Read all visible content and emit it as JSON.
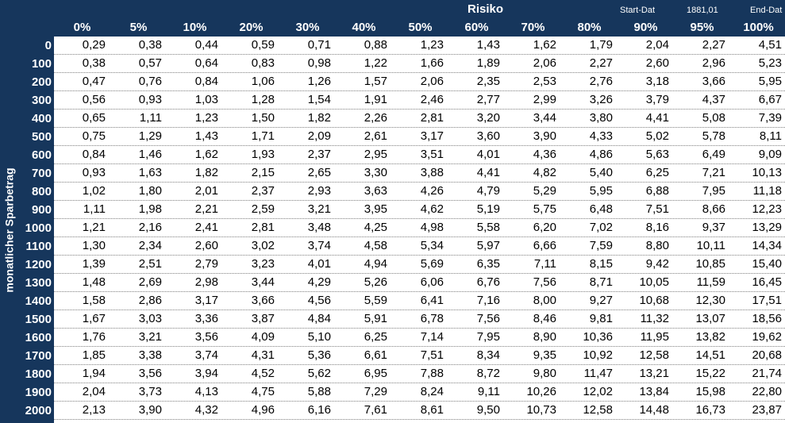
{
  "header": {
    "title": "Risiko",
    "start_label": "Start-Dat",
    "start_value": "1881,01",
    "end_label": "End-Dat"
  },
  "row_axis_label": "monatlicher Sparbetrag",
  "columns": [
    "0%",
    "5%",
    "10%",
    "20%",
    "30%",
    "40%",
    "50%",
    "60%",
    "70%",
    "80%",
    "90%",
    "95%",
    "100%"
  ],
  "row_labels": [
    "0",
    "100",
    "200",
    "300",
    "400",
    "500",
    "600",
    "700",
    "800",
    "900",
    "1000",
    "1100",
    "1200",
    "1300",
    "1400",
    "1500",
    "1600",
    "1700",
    "1800",
    "1900",
    "2000"
  ],
  "rows": [
    [
      "0,29",
      "0,38",
      "0,44",
      "0,59",
      "0,71",
      "0,88",
      "1,23",
      "1,43",
      "1,62",
      "1,79",
      "2,04",
      "2,27",
      "4,51"
    ],
    [
      "0,38",
      "0,57",
      "0,64",
      "0,83",
      "0,98",
      "1,22",
      "1,66",
      "1,89",
      "2,06",
      "2,27",
      "2,60",
      "2,96",
      "5,23"
    ],
    [
      "0,47",
      "0,76",
      "0,84",
      "1,06",
      "1,26",
      "1,57",
      "2,06",
      "2,35",
      "2,53",
      "2,76",
      "3,18",
      "3,66",
      "5,95"
    ],
    [
      "0,56",
      "0,93",
      "1,03",
      "1,28",
      "1,54",
      "1,91",
      "2,46",
      "2,77",
      "2,99",
      "3,26",
      "3,79",
      "4,37",
      "6,67"
    ],
    [
      "0,65",
      "1,11",
      "1,23",
      "1,50",
      "1,82",
      "2,26",
      "2,81",
      "3,20",
      "3,44",
      "3,80",
      "4,41",
      "5,08",
      "7,39"
    ],
    [
      "0,75",
      "1,29",
      "1,43",
      "1,71",
      "2,09",
      "2,61",
      "3,17",
      "3,60",
      "3,90",
      "4,33",
      "5,02",
      "5,78",
      "8,11"
    ],
    [
      "0,84",
      "1,46",
      "1,62",
      "1,93",
      "2,37",
      "2,95",
      "3,51",
      "4,01",
      "4,36",
      "4,86",
      "5,63",
      "6,49",
      "9,09"
    ],
    [
      "0,93",
      "1,63",
      "1,82",
      "2,15",
      "2,65",
      "3,30",
      "3,88",
      "4,41",
      "4,82",
      "5,40",
      "6,25",
      "7,21",
      "10,13"
    ],
    [
      "1,02",
      "1,80",
      "2,01",
      "2,37",
      "2,93",
      "3,63",
      "4,26",
      "4,79",
      "5,29",
      "5,95",
      "6,88",
      "7,95",
      "11,18"
    ],
    [
      "1,11",
      "1,98",
      "2,21",
      "2,59",
      "3,21",
      "3,95",
      "4,62",
      "5,19",
      "5,75",
      "6,48",
      "7,51",
      "8,66",
      "12,23"
    ],
    [
      "1,21",
      "2,16",
      "2,41",
      "2,81",
      "3,48",
      "4,25",
      "4,98",
      "5,58",
      "6,20",
      "7,02",
      "8,16",
      "9,37",
      "13,29"
    ],
    [
      "1,30",
      "2,34",
      "2,60",
      "3,02",
      "3,74",
      "4,58",
      "5,34",
      "5,97",
      "6,66",
      "7,59",
      "8,80",
      "10,11",
      "14,34"
    ],
    [
      "1,39",
      "2,51",
      "2,79",
      "3,23",
      "4,01",
      "4,94",
      "5,69",
      "6,35",
      "7,11",
      "8,15",
      "9,42",
      "10,85",
      "15,40"
    ],
    [
      "1,48",
      "2,69",
      "2,98",
      "3,44",
      "4,29",
      "5,26",
      "6,06",
      "6,76",
      "7,56",
      "8,71",
      "10,05",
      "11,59",
      "16,45"
    ],
    [
      "1,58",
      "2,86",
      "3,17",
      "3,66",
      "4,56",
      "5,59",
      "6,41",
      "7,16",
      "8,00",
      "9,27",
      "10,68",
      "12,30",
      "17,51"
    ],
    [
      "1,67",
      "3,03",
      "3,36",
      "3,87",
      "4,84",
      "5,91",
      "6,78",
      "7,56",
      "8,46",
      "9,81",
      "11,32",
      "13,07",
      "18,56"
    ],
    [
      "1,76",
      "3,21",
      "3,56",
      "4,09",
      "5,10",
      "6,25",
      "7,14",
      "7,95",
      "8,90",
      "10,36",
      "11,95",
      "13,82",
      "19,62"
    ],
    [
      "1,85",
      "3,38",
      "3,74",
      "4,31",
      "5,36",
      "6,61",
      "7,51",
      "8,34",
      "9,35",
      "10,92",
      "12,58",
      "14,51",
      "20,68"
    ],
    [
      "1,94",
      "3,56",
      "3,94",
      "4,52",
      "5,62",
      "6,95",
      "7,88",
      "8,72",
      "9,80",
      "11,47",
      "13,21",
      "15,22",
      "21,74"
    ],
    [
      "2,04",
      "3,73",
      "4,13",
      "4,75",
      "5,88",
      "7,29",
      "8,24",
      "9,11",
      "10,26",
      "12,02",
      "13,84",
      "15,98",
      "22,80"
    ],
    [
      "2,13",
      "3,90",
      "4,32",
      "4,96",
      "6,16",
      "7,61",
      "8,61",
      "9,50",
      "10,73",
      "12,58",
      "14,48",
      "16,73",
      "23,87"
    ]
  ]
}
